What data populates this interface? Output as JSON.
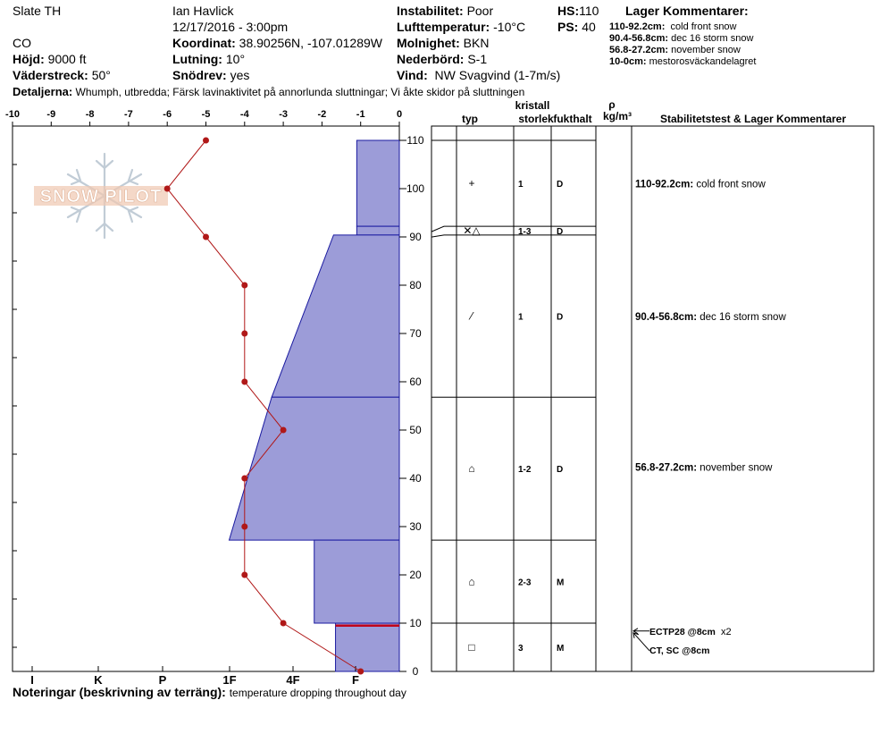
{
  "header": {
    "location": "Slate TH",
    "state": "CO",
    "observer": "Ian Havlick",
    "datetime": "12/17/2016 - 3:00pm",
    "elevation_label": "Höjd:",
    "elevation": "9000 ft",
    "aspect_label": "Väderstreck:",
    "aspect": "50°",
    "coord_label": "Koordinat:",
    "coord": "38.90256N, -107.01289W",
    "slope_label": "Lutning:",
    "slope": "10°",
    "drift_label": "Snödrev:",
    "drift": "yes",
    "instability_label": "Instabilitet:",
    "instability": "Poor",
    "airtemp_label": "Lufttemperatur:",
    "airtemp": "-10°C",
    "sky_label": "Molnighet:",
    "sky": "BKN",
    "precip_label": "Nederbörd:",
    "precip": "S-1",
    "wind_label": "Vind:",
    "wind": "NW Svagvind (1-7m/s)",
    "hs_label": "HS:",
    "hs": "110",
    "ps_label": "PS:",
    "ps": "40",
    "details_label": "Detaljerna:",
    "details": "Whumph, utbredda;  Färsk lavinaktivitet på annorlunda sluttningar;  Vi åkte skidor på sluttningen",
    "layer_comments_title": "Lager Kommentarer:",
    "layer_comments": [
      {
        "range": "110-92.2cm:",
        "text": "cold front snow"
      },
      {
        "range": "90.4-56.8cm:",
        "text": "dec 16 storm snow"
      },
      {
        "range": "56.8-27.2cm:",
        "text": "november snow"
      },
      {
        "range": "10-0cm:",
        "text": "mestorosväckandelagret"
      }
    ]
  },
  "logo": {
    "text": "SNOW PILOT"
  },
  "notes": {
    "label": "Noteringar (beskrivning av terräng):",
    "text": "temperature dropping throughout day"
  },
  "chart_data": {
    "type": "snow-profile",
    "temp_axis": {
      "ticks": [
        "-10",
        "-9",
        "-8",
        "-7",
        "-6",
        "-5",
        "-4",
        "-3",
        "-2",
        "-1",
        "0"
      ],
      "range": [
        -10,
        0
      ]
    },
    "height_axis": {
      "ticks": [
        "0",
        "10",
        "20",
        "30",
        "40",
        "50",
        "60",
        "70",
        "80",
        "90",
        "100",
        "110"
      ],
      "range": [
        0,
        110
      ]
    },
    "hardness_axis": {
      "ticks": [
        "I",
        "K",
        "P",
        "1F",
        "4F",
        "F"
      ]
    },
    "temperature_profile": [
      {
        "height": 110,
        "temp": -5
      },
      {
        "height": 100,
        "temp": -6
      },
      {
        "height": 90,
        "temp": -5
      },
      {
        "height": 80,
        "temp": -4
      },
      {
        "height": 70,
        "temp": -4
      },
      {
        "height": 60,
        "temp": -4
      },
      {
        "height": 50,
        "temp": -3
      },
      {
        "height": 40,
        "temp": -4
      },
      {
        "height": 30,
        "temp": -4
      },
      {
        "height": 20,
        "temp": -4
      },
      {
        "height": 10,
        "temp": -3
      },
      {
        "height": 0,
        "temp": -1
      }
    ],
    "hardness_layers": [
      {
        "top": 110,
        "bottom": 92.2,
        "hardness_top": -1.1,
        "hardness_bottom": -1.1
      },
      {
        "top": 92.2,
        "bottom": 90.4,
        "hardness_top": -1.1,
        "hardness_bottom": -1.1
      },
      {
        "top": 90.4,
        "bottom": 56.8,
        "hardness_top": -1.7,
        "hardness_bottom": -3.3
      },
      {
        "top": 56.8,
        "bottom": 27.2,
        "hardness_top": -3.3,
        "hardness_bottom": -4.4
      },
      {
        "top": 27.2,
        "bottom": 10,
        "hardness_top": -2.2,
        "hardness_bottom": -2.2
      },
      {
        "top": 10,
        "bottom": 0,
        "hardness_top": -1.65,
        "hardness_bottom": -1.65
      }
    ],
    "weak_layer_height": 9.5,
    "table_headers": {
      "type": "typ",
      "crystal": "kristall",
      "size": "storlek",
      "moisture": "fukthalt",
      "rho": "ρ",
      "density_unit": "kg/m³",
      "stability": "Stabilitetstest & Lager Kommentarer"
    },
    "table_rows": [
      {
        "top": 110,
        "bottom": 92.2,
        "symbol": "+",
        "size": "1",
        "moisture": "D"
      },
      {
        "top": 92.2,
        "bottom": 90.4,
        "symbol": "✕△",
        "size": "1-3",
        "moisture": "D"
      },
      {
        "top": 90.4,
        "bottom": 56.8,
        "symbol": "⁄",
        "size": "1",
        "moisture": "D"
      },
      {
        "top": 56.8,
        "bottom": 27.2,
        "symbol": "⌂",
        "size": "1-2",
        "moisture": "D"
      },
      {
        "top": 27.2,
        "bottom": 10,
        "symbol": "⌂",
        "size": "2-3",
        "moisture": "M"
      },
      {
        "top": 10,
        "bottom": 0,
        "symbol": "□",
        "size": "3",
        "moisture": "M"
      }
    ],
    "layer_notes": [
      {
        "range": "110-92.2cm:",
        "text": "cold front snow",
        "height": 101
      },
      {
        "range": "90.4-56.8cm:",
        "text": "dec 16 storm snow",
        "height": 73.5
      },
      {
        "range": "56.8-27.2cm:",
        "text": "november snow",
        "height": 42.3
      }
    ],
    "stability_tests": [
      {
        "label": "ECTP28 @8cm",
        "extra": "x2"
      },
      {
        "label": "CT, SC @8cm",
        "extra": ""
      }
    ]
  }
}
